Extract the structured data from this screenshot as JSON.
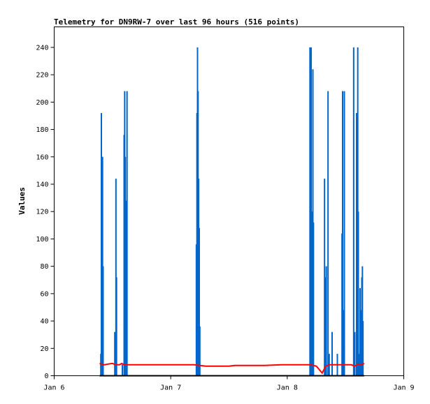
{
  "chart_data": {
    "type": "line",
    "title": "Telemetry for DN9RW-7 over last 96 hours (516 points)",
    "xlabel": "",
    "ylabel": "Values",
    "xlim": [
      0,
      3
    ],
    "ylim": [
      0,
      255
    ],
    "x_ticks": [
      {
        "v": 0,
        "label": "Jan 6"
      },
      {
        "v": 1,
        "label": "Jan 7"
      },
      {
        "v": 2,
        "label": "Jan 8"
      },
      {
        "v": 3,
        "label": "Jan 9"
      }
    ],
    "y_ticks": [
      0,
      20,
      40,
      60,
      80,
      100,
      120,
      140,
      160,
      180,
      200,
      220,
      240
    ],
    "grid": false,
    "series": [
      {
        "color": "#0066cc",
        "kind": "spikes",
        "points": [
          [
            0.4,
            16
          ],
          [
            0.405,
            192
          ],
          [
            0.41,
            96
          ],
          [
            0.415,
            160
          ],
          [
            0.42,
            80
          ],
          [
            0.52,
            32
          ],
          [
            0.525,
            16
          ],
          [
            0.53,
            144
          ],
          [
            0.535,
            72
          ],
          [
            0.585,
            8
          ],
          [
            0.6,
            176
          ],
          [
            0.605,
            208
          ],
          [
            0.61,
            160
          ],
          [
            0.615,
            128
          ],
          [
            0.625,
            208
          ],
          [
            1.22,
            96
          ],
          [
            1.225,
            192
          ],
          [
            1.23,
            240
          ],
          [
            1.235,
            208
          ],
          [
            1.24,
            144
          ],
          [
            1.245,
            108
          ],
          [
            1.25,
            36
          ],
          [
            2.195,
            240
          ],
          [
            2.205,
            240
          ],
          [
            2.21,
            120
          ],
          [
            2.22,
            224
          ],
          [
            2.225,
            112
          ],
          [
            2.32,
            144
          ],
          [
            2.33,
            72
          ],
          [
            2.335,
            80
          ],
          [
            2.35,
            208
          ],
          [
            2.36,
            16
          ],
          [
            2.385,
            32
          ],
          [
            2.43,
            16
          ],
          [
            2.47,
            104
          ],
          [
            2.475,
            208
          ],
          [
            2.48,
            48
          ],
          [
            2.49,
            208
          ],
          [
            2.57,
            240
          ],
          [
            2.58,
            32
          ],
          [
            2.595,
            192
          ],
          [
            2.6,
            120
          ],
          [
            2.605,
            240
          ],
          [
            2.61,
            120
          ],
          [
            2.62,
            16
          ],
          [
            2.625,
            64
          ],
          [
            2.63,
            48
          ],
          [
            2.64,
            72
          ],
          [
            2.645,
            80
          ],
          [
            2.65,
            40
          ]
        ]
      },
      {
        "color": "#ff0000",
        "kind": "line",
        "points": [
          [
            0.39,
            9
          ],
          [
            0.43,
            8
          ],
          [
            0.46,
            8.5
          ],
          [
            0.5,
            9
          ],
          [
            0.53,
            8
          ],
          [
            0.56,
            8
          ],
          [
            0.58,
            9
          ],
          [
            0.6,
            8
          ],
          [
            0.8,
            8
          ],
          [
            1.0,
            8
          ],
          [
            1.2,
            8
          ],
          [
            1.3,
            7
          ],
          [
            1.5,
            7
          ],
          [
            1.55,
            7.5
          ],
          [
            1.8,
            7.5
          ],
          [
            1.95,
            8
          ],
          [
            2.2,
            8
          ],
          [
            2.25,
            7
          ],
          [
            2.3,
            2
          ],
          [
            2.33,
            7
          ],
          [
            2.36,
            8
          ],
          [
            2.45,
            8
          ],
          [
            2.55,
            8
          ],
          [
            2.58,
            7
          ],
          [
            2.61,
            8.5
          ],
          [
            2.63,
            8
          ],
          [
            2.66,
            9
          ]
        ]
      },
      {
        "color": "#000000",
        "kind": "line",
        "points": [
          [
            0.39,
            0
          ],
          [
            2.66,
            0
          ]
        ]
      }
    ]
  }
}
